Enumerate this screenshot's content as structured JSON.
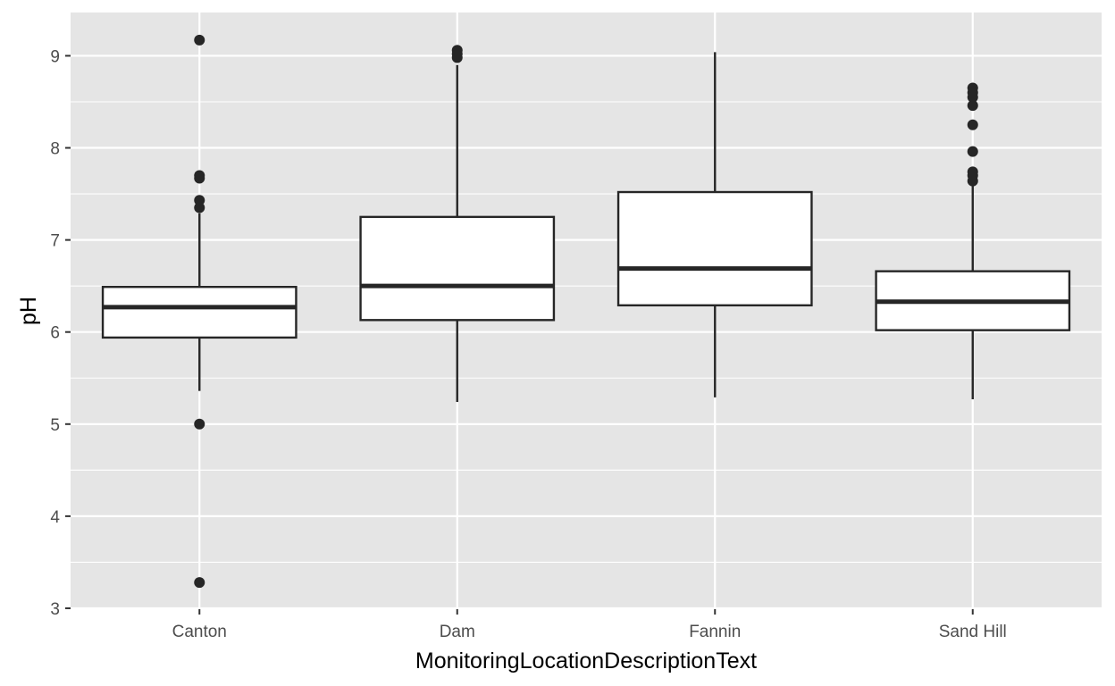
{
  "chart_data": {
    "type": "box",
    "xlabel": "MonitoringLocationDescriptionText",
    "ylabel": "pH",
    "ylim": [
      2.99,
      9.47
    ],
    "yticks": [
      3,
      4,
      5,
      6,
      7,
      8,
      9
    ],
    "grid": true,
    "panel_color": "#e5e5e5",
    "grid_color": "#ffffff",
    "box_fill": "#ffffff",
    "box_stroke": "#262626",
    "categories": [
      "Canton",
      "Dam",
      "Fannin",
      "Sand Hill"
    ],
    "boxes": [
      {
        "category": "Canton",
        "whisker_low": 5.36,
        "q1": 5.94,
        "median": 6.27,
        "q3": 6.49,
        "whisker_high": 7.29,
        "outliers": [
          9.17,
          7.7,
          7.67,
          7.43,
          7.35,
          5.0,
          3.28
        ]
      },
      {
        "category": "Dam",
        "whisker_low": 5.24,
        "q1": 6.13,
        "median": 6.5,
        "q3": 7.25,
        "whisker_high": 8.9,
        "outliers": [
          9.06,
          9.02,
          8.98
        ]
      },
      {
        "category": "Fannin",
        "whisker_low": 5.29,
        "q1": 6.29,
        "median": 6.69,
        "q3": 7.52,
        "whisker_high": 9.04,
        "outliers": []
      },
      {
        "category": "Sand Hill",
        "whisker_low": 5.27,
        "q1": 6.02,
        "median": 6.33,
        "q3": 6.66,
        "whisker_high": 7.62,
        "outliers": [
          8.65,
          8.6,
          8.55,
          8.46,
          8.25,
          7.96,
          7.74,
          7.7,
          7.64
        ]
      }
    ]
  }
}
